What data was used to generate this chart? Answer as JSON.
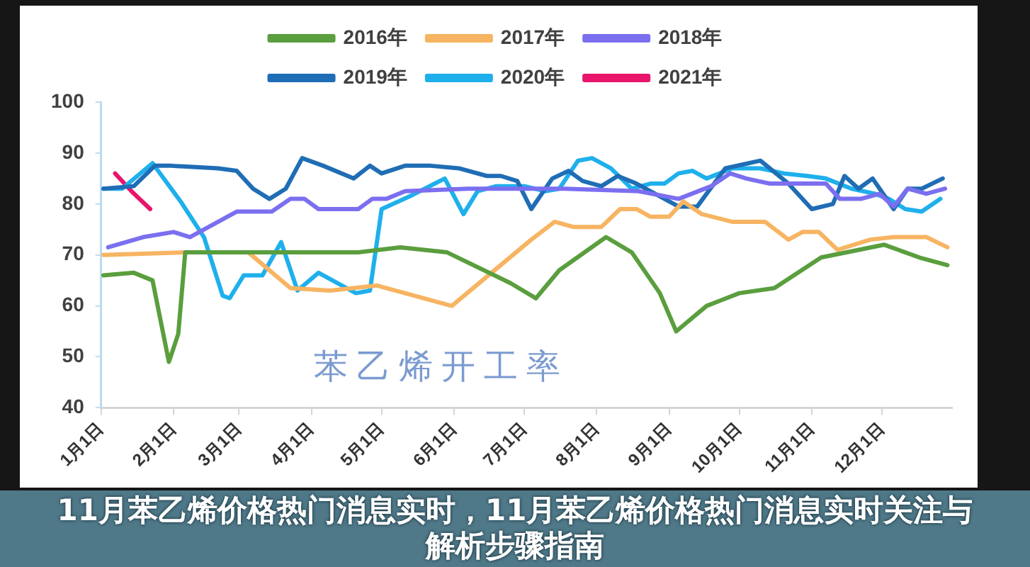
{
  "chart_data": {
    "type": "line",
    "title": "11月苯乙烯价格热门消息实时，11月苯乙烯价格热门消息实时关注与解析步骤指南",
    "subtitle": "苯乙烯开工率",
    "series": [
      {
        "name": "2016年",
        "color": "#5a9e3e",
        "x": [
          "--01-02",
          "--01-15",
          "--01-23",
          "--01-30",
          "--02-03",
          "--02-06",
          "--03-23",
          "--04-21",
          "--05-09",
          "--05-29",
          "--06-25",
          "--07-06",
          "--07-16",
          "--08-05",
          "--08-16",
          "--08-28",
          "--09-04",
          "--09-17",
          "--10-01",
          "--10-16",
          "--11-05",
          "--12-02",
          "--12-17",
          "--12-29"
        ],
        "values": [
          66,
          66.5,
          65,
          49,
          54.5,
          70.5,
          70.5,
          70.5,
          71.5,
          70.5,
          64.5,
          61.5,
          67,
          73.5,
          70.5,
          62.5,
          55,
          60,
          62.5,
          63.5,
          69.5,
          72,
          69.5,
          68
        ]
      },
      {
        "name": "2017年",
        "color": "#f7b462",
        "x": [
          "--01-02",
          "--02-06",
          "--03-05",
          "--03-23",
          "--04-09",
          "--04-29",
          "--05-31",
          "--07-04",
          "--07-14",
          "--07-22",
          "--08-03",
          "--08-11",
          "--08-18",
          "--08-24",
          "--09-01",
          "--09-07",
          "--09-15",
          "--09-28",
          "--10-12",
          "--10-22",
          "--10-28",
          "--11-04",
          "--11-12",
          "--11-26",
          "--12-06",
          "--12-20",
          "--12-29"
        ],
        "values": [
          70,
          70.5,
          70.5,
          63.5,
          63,
          64,
          60,
          73,
          76.5,
          75.5,
          75.5,
          79,
          79,
          77.5,
          77.5,
          80.5,
          78,
          76.5,
          76.5,
          73,
          74.5,
          74.5,
          71,
          73,
          73.5,
          73.5,
          71.5
        ]
      },
      {
        "name": "2018年",
        "color": "#7b6ff0",
        "x": [
          "--01-04",
          "--01-19",
          "--02-01",
          "--02-08",
          "--02-28",
          "--03-15",
          "--03-23",
          "--03-29",
          "--04-04",
          "--04-21",
          "--04-27",
          "--05-03",
          "--05-11",
          "--06-07",
          "--07-18",
          "--08-19",
          "--09-05",
          "--09-19",
          "--09-27",
          "--10-04",
          "--10-14",
          "--11-07",
          "--11-13",
          "--11-22",
          "--11-30",
          "--12-06",
          "--12-12",
          "--12-20",
          "--12-28"
        ],
        "values": [
          71.5,
          73.5,
          74.5,
          73.5,
          78.5,
          78.5,
          81,
          81,
          79,
          79,
          81,
          81,
          82.5,
          83,
          83,
          82.5,
          81,
          83.5,
          86,
          85,
          84,
          84,
          81,
          81,
          82,
          79.5,
          83,
          82,
          83
        ]
      },
      {
        "name": "2019年",
        "color": "#1f6db5",
        "x": [
          "--01-02",
          "--01-15",
          "--01-24",
          "--01-31",
          "--02-20",
          "--02-28",
          "--03-07",
          "--03-14",
          "--03-21",
          "--03-28",
          "--04-06",
          "--04-19",
          "--04-26",
          "--05-01",
          "--05-11",
          "--05-22",
          "--06-03",
          "--06-15",
          "--06-21",
          "--06-28",
          "--07-04",
          "--07-13",
          "--07-20",
          "--07-26",
          "--08-03",
          "--08-10",
          "--08-18",
          "--08-30",
          "--09-05",
          "--09-13",
          "--09-25",
          "--10-10",
          "--10-22",
          "--11-01",
          "--11-10",
          "--11-15",
          "--11-21",
          "--11-27",
          "--12-06",
          "--12-12",
          "--12-18",
          "--12-27"
        ],
        "values": [
          83,
          83.5,
          87.5,
          87.5,
          87,
          86.5,
          83,
          81,
          83,
          89,
          87.5,
          85,
          87.5,
          86,
          87.5,
          87.5,
          87,
          85.5,
          85.5,
          84.5,
          79,
          85,
          86.5,
          84.5,
          83.5,
          85.5,
          84,
          81,
          79.5,
          79.5,
          87,
          88.5,
          84,
          79,
          80,
          85.5,
          83,
          85,
          79,
          83,
          83,
          85
        ]
      },
      {
        "name": "2020年",
        "color": "#1fb0ec",
        "x": [
          "--01-02",
          "--01-10",
          "--01-23",
          "--02-04",
          "--02-14",
          "--02-22",
          "--02-25",
          "--03-03",
          "--03-11",
          "--03-19",
          "--03-26",
          "--04-04",
          "--04-20",
          "--04-26",
          "--05-01",
          "--05-13",
          "--05-28",
          "--06-05",
          "--06-11",
          "--06-19",
          "--07-01",
          "--07-10",
          "--07-16",
          "--07-24",
          "--07-30",
          "--08-07",
          "--08-16",
          "--08-24",
          "--08-30",
          "--09-05",
          "--09-11",
          "--09-17",
          "--09-28",
          "--10-10",
          "--10-20",
          "--10-30",
          "--11-07",
          "--11-18",
          "--11-28",
          "--12-04",
          "--12-11",
          "--12-18",
          "--12-26"
        ],
        "values": [
          83,
          83,
          88,
          80.5,
          73.5,
          62,
          61.5,
          66,
          66,
          72.5,
          63,
          66.5,
          62.5,
          63,
          79,
          81.5,
          85,
          78,
          82.5,
          83.5,
          83.5,
          82.5,
          83,
          88.5,
          89,
          87,
          83,
          84,
          84,
          86,
          86.5,
          85,
          87,
          87,
          86,
          85.5,
          85,
          83,
          82,
          81,
          79,
          78.5,
          81
        ]
      },
      {
        "name": "2021年",
        "color": "#e8156b",
        "x": [
          "--01-07",
          "--01-14",
          "--01-22"
        ],
        "values": [
          86,
          82.5,
          79
        ]
      }
    ],
    "xlim": [
      "--01-01",
      "--12-31"
    ],
    "xticks": [
      {
        "value": "--01-01",
        "label": "1月1日"
      },
      {
        "value": "--02-01",
        "label": "2月1日"
      },
      {
        "value": "--03-01",
        "label": "3月1日"
      },
      {
        "value": "--04-01",
        "label": "4月1日"
      },
      {
        "value": "--05-01",
        "label": "5月1日"
      },
      {
        "value": "--06-01",
        "label": "6月1日"
      },
      {
        "value": "--07-01",
        "label": "7月1日"
      },
      {
        "value": "--08-01",
        "label": "8月1日"
      },
      {
        "value": "--09-01",
        "label": "9月1日"
      },
      {
        "value": "--10-01",
        "label": "10月1日"
      },
      {
        "value": "--11-01",
        "label": "11月1日"
      },
      {
        "value": "--12-01",
        "label": "12月1日"
      }
    ],
    "ylim": [
      40,
      100
    ],
    "yticks": [
      40,
      50,
      60,
      70,
      80,
      90,
      100
    ],
    "grid": false,
    "legend": "top",
    "marker": "none",
    "line_style": "solid"
  }
}
